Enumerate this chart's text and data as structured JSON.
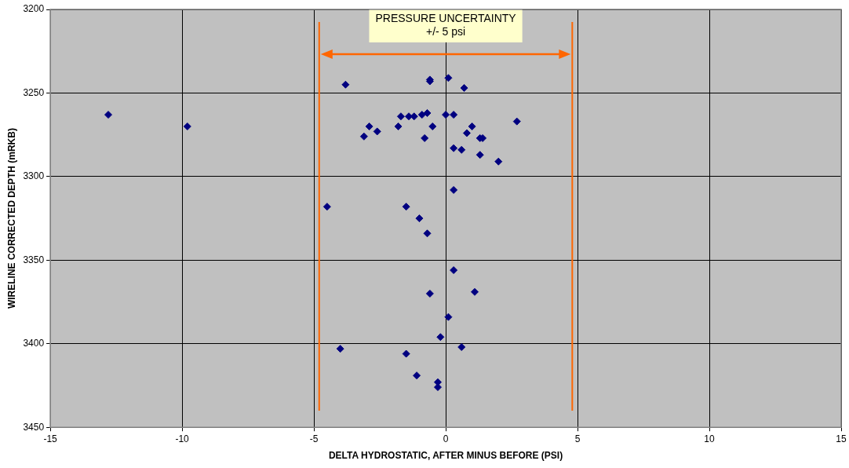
{
  "chart_data": {
    "type": "scatter",
    "xlabel": "DELTA HYDROSTATIC, AFTER MINUS BEFORE (PSI)",
    "ylabel": "WIRELINE CORRECTED DEPTH (mRKB)",
    "x": [
      -12.8,
      -9.8,
      -3.8,
      -0.6,
      -0.6,
      0.1,
      0.7,
      -1.7,
      -1.4,
      -1.2,
      -0.9,
      -0.7,
      0.0,
      0.3,
      2.7,
      -2.9,
      -3.1,
      -2.6,
      -1.8,
      -0.5,
      -0.8,
      1.0,
      0.8,
      1.3,
      1.4,
      0.3,
      0.6,
      1.3,
      2.0,
      0.3,
      -4.5,
      -1.5,
      -1.0,
      -0.7,
      0.3,
      -0.6,
      1.1,
      0.1,
      -0.2,
      -4.0,
      0.6,
      -1.5,
      -1.1,
      -0.3,
      -0.3
    ],
    "series": [
      {
        "color": "#000080",
        "values": [
          3263,
          3270,
          3245,
          3242,
          3243,
          3241,
          3247,
          3264,
          3264,
          3264,
          3263,
          3262,
          3263,
          3263,
          3267,
          3270,
          3276,
          3273,
          3270,
          3270,
          3277,
          3270,
          3274,
          3277,
          3277,
          3283,
          3284,
          3287,
          3291,
          3308,
          3318,
          3318,
          3325,
          3334,
          3356,
          3370,
          3369,
          3384,
          3396,
          3403,
          3402,
          3406,
          3419,
          3423,
          3426
        ]
      }
    ],
    "xlim": [
      -15,
      15
    ],
    "xticks": [
      -15,
      -10,
      -5,
      0,
      5,
      10,
      15
    ],
    "ylim": [
      3450,
      3200
    ],
    "yticks": [
      3200,
      3250,
      3300,
      3350,
      3400,
      3450
    ],
    "grid": true,
    "legend": false,
    "marker": "diamond",
    "ref_lines": [
      {
        "axis": "x",
        "value": -4.8,
        "color": "#ff6600"
      },
      {
        "axis": "x",
        "value": 4.8,
        "color": "#ff6600"
      }
    ],
    "annotations": [
      "PRESSURE UNCERTAINTY\n+/- 5 psi"
    ]
  }
}
